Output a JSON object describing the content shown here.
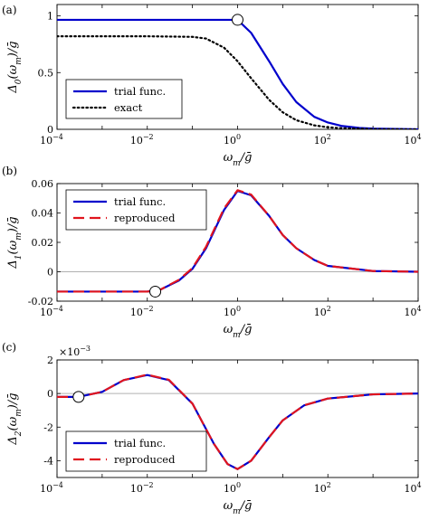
{
  "chart_data": [
    {
      "panel_label": "(a)",
      "type": "line",
      "xscale": "log",
      "xlim": [
        0.0001,
        10000
      ],
      "ylim": [
        0,
        1.1
      ],
      "xticks": [
        0.0001,
        0.01,
        1,
        100,
        10000
      ],
      "xtick_labels": [
        [
          "10",
          "−4"
        ],
        [
          "10",
          "−2"
        ],
        [
          "10",
          "0"
        ],
        [
          "10",
          "2"
        ],
        [
          "10",
          "4"
        ]
      ],
      "yticks": [
        0,
        0.5,
        1
      ],
      "ytick_labels": [
        "0",
        "0.5",
        "1"
      ],
      "xlabel": "ω_m/ḡ",
      "ylabel": "Δ_0(ω_m)/ḡ",
      "exponent_label": "",
      "zero_line": false,
      "grid": false,
      "legend_position": "bottom-left",
      "series": [
        {
          "name": "trial func.",
          "color": "#0000cc",
          "style": "solid",
          "x": [
            0.0001,
            0.001,
            0.01,
            0.1,
            0.5,
            1,
            2,
            5,
            10,
            20,
            50,
            100,
            200,
            500,
            1000,
            10000
          ],
          "y": [
            0.965,
            0.965,
            0.965,
            0.965,
            0.965,
            0.965,
            0.85,
            0.6,
            0.4,
            0.24,
            0.11,
            0.06,
            0.03,
            0.012,
            0.006,
            0.0
          ]
        },
        {
          "name": "exact",
          "color": "#000000",
          "style": "dotted",
          "x": [
            0.0001,
            0.001,
            0.01,
            0.1,
            0.2,
            0.5,
            1,
            2,
            5,
            10,
            20,
            50,
            100,
            200,
            1000,
            10000
          ],
          "y": [
            0.82,
            0.82,
            0.82,
            0.815,
            0.8,
            0.72,
            0.6,
            0.45,
            0.26,
            0.15,
            0.08,
            0.035,
            0.018,
            0.01,
            0.002,
            0.0
          ]
        }
      ],
      "marker": {
        "x": 1,
        "y": 0.965
      }
    },
    {
      "panel_label": "(b)",
      "type": "line",
      "xscale": "log",
      "xlim": [
        0.0001,
        10000
      ],
      "ylim": [
        -0.02,
        0.06
      ],
      "xticks": [
        0.0001,
        0.01,
        1,
        100,
        10000
      ],
      "xtick_labels": [
        [
          "10",
          "−4"
        ],
        [
          "10",
          "−2"
        ],
        [
          "10",
          "0"
        ],
        [
          "10",
          "2"
        ],
        [
          "10",
          "4"
        ]
      ],
      "yticks": [
        -0.02,
        0,
        0.02,
        0.04,
        0.06
      ],
      "ytick_labels": [
        "-0.02",
        "0",
        "0.02",
        "0.04",
        "0.06"
      ],
      "xlabel": "ω_m/ḡ",
      "ylabel": "Δ_1(ω_m)/ḡ",
      "exponent_label": "",
      "zero_line": true,
      "grid": false,
      "legend_position": "top-left",
      "series": [
        {
          "name": "trial func.",
          "color": "#0000cc",
          "style": "solid",
          "x": [
            0.0001,
            0.001,
            0.01,
            0.02,
            0.05,
            0.1,
            0.2,
            0.5,
            1,
            2,
            5,
            10,
            20,
            50,
            100,
            1000,
            10000
          ],
          "y": [
            -0.0135,
            -0.0135,
            -0.0135,
            -0.012,
            -0.006,
            0.002,
            0.016,
            0.042,
            0.055,
            0.052,
            0.038,
            0.025,
            0.016,
            0.008,
            0.004,
            0.0005,
            0.0
          ]
        },
        {
          "name": "reproduced",
          "color": "#e0141e",
          "style": "dashed",
          "x": [
            0.0001,
            0.001,
            0.01,
            0.02,
            0.05,
            0.1,
            0.2,
            0.5,
            1,
            2,
            5,
            10,
            20,
            50,
            100,
            1000,
            10000
          ],
          "y": [
            -0.0135,
            -0.0135,
            -0.0135,
            -0.012,
            -0.0055,
            0.0025,
            0.017,
            0.043,
            0.0555,
            0.0525,
            0.038,
            0.025,
            0.016,
            0.008,
            0.004,
            0.0005,
            0.0
          ]
        }
      ],
      "marker": {
        "x": 0.015,
        "y": -0.0135
      }
    },
    {
      "panel_label": "(c)",
      "type": "line",
      "xscale": "log",
      "xlim": [
        0.0001,
        10000
      ],
      "ylim": [
        -5,
        2
      ],
      "xticks": [
        0.0001,
        0.01,
        1,
        100,
        10000
      ],
      "xtick_labels": [
        [
          "10",
          "−4"
        ],
        [
          "10",
          "−2"
        ],
        [
          "10",
          "0"
        ],
        [
          "10",
          "2"
        ],
        [
          "10",
          "4"
        ]
      ],
      "yticks": [
        -4,
        -2,
        0,
        2
      ],
      "ytick_labels": [
        "-4",
        "-2",
        "0",
        "2"
      ],
      "xlabel": "ω_m/ḡ",
      "ylabel": "Δ_2(ω_m)/ḡ",
      "exponent_label": [
        "×10",
        "−3"
      ],
      "zero_line": true,
      "grid": false,
      "legend_position": "bottom-left",
      "series": [
        {
          "name": "trial func.",
          "color": "#0000cc",
          "style": "solid",
          "x": [
            0.0001,
            0.0003,
            0.001,
            0.003,
            0.01,
            0.03,
            0.1,
            0.3,
            0.6,
            1,
            2,
            5,
            10,
            30,
            100,
            1000,
            10000
          ],
          "y": [
            -0.2,
            -0.2,
            0.1,
            0.8,
            1.1,
            0.8,
            -0.6,
            -3.0,
            -4.2,
            -4.5,
            -4.0,
            -2.6,
            -1.6,
            -0.7,
            -0.3,
            -0.05,
            0.0
          ]
        },
        {
          "name": "reproduced",
          "color": "#e0141e",
          "style": "dashed",
          "x": [
            0.0001,
            0.0003,
            0.001,
            0.003,
            0.01,
            0.03,
            0.1,
            0.3,
            0.6,
            1,
            2,
            5,
            10,
            30,
            100,
            1000,
            10000
          ],
          "y": [
            -0.2,
            -0.2,
            0.1,
            0.8,
            1.12,
            0.82,
            -0.6,
            -3.0,
            -4.2,
            -4.5,
            -4.0,
            -2.6,
            -1.6,
            -0.7,
            -0.3,
            -0.05,
            0.0
          ]
        }
      ],
      "marker": {
        "x": 0.0003,
        "y": -0.2
      }
    }
  ]
}
